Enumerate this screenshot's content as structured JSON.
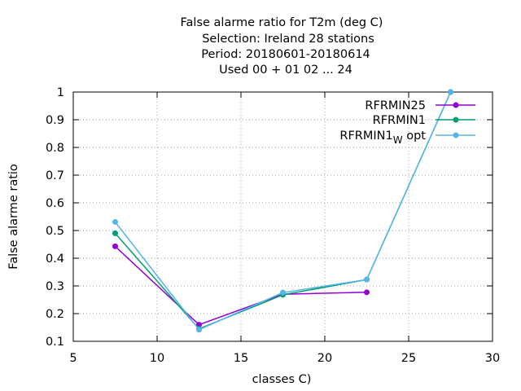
{
  "chart_data": {
    "type": "line",
    "title_lines": [
      "False alarme ratio  for T2m (deg C)",
      "Selection: Ireland      28 stations",
      "Period: 20180601-20180614",
      "Used  00 + 01 02 ... 24"
    ],
    "xlabel": "classes C)",
    "ylabel": "False alarme ratio",
    "xlim": [
      5,
      30
    ],
    "ylim": [
      0.1,
      1
    ],
    "xticks": [
      5,
      10,
      15,
      20,
      25,
      30
    ],
    "xtick_labels": [
      "5",
      "10",
      "15",
      "20",
      "25",
      "30"
    ],
    "yticks": [
      0.1,
      0.2,
      0.3,
      0.4,
      0.5,
      0.6,
      0.7,
      0.8,
      0.9,
      1
    ],
    "ytick_labels": [
      "0.1",
      "0.2",
      "0.3",
      "0.4",
      "0.5",
      "0.6",
      "0.7",
      "0.8",
      "0.9",
      "1"
    ],
    "grid": true,
    "legend_position": "top-right",
    "series": [
      {
        "name": "RFRMIN25",
        "color": "#9400d3",
        "x": [
          7.5,
          12.5,
          17.5,
          22.5
        ],
        "y": [
          0.443,
          0.16,
          0.27,
          0.277
        ]
      },
      {
        "name": "RFRMIN1",
        "color": "#009e73",
        "x": [
          7.5,
          12.5,
          17.5,
          22.5,
          27.5
        ],
        "y": [
          0.49,
          0.145,
          0.268,
          0.323,
          1.0
        ]
      },
      {
        "name": "RFRMIN1",
        "name_subscript": "W",
        "name_suffix": " opt",
        "color": "#56b4e9",
        "x": [
          7.5,
          12.5,
          17.5,
          22.5,
          27.5
        ],
        "y": [
          0.531,
          0.142,
          0.276,
          0.323,
          1.0
        ]
      }
    ]
  }
}
